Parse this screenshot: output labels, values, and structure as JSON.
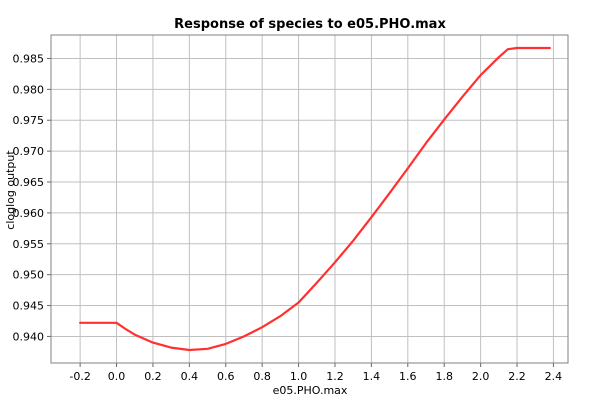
{
  "chart_data": {
    "type": "line",
    "title": "Response of species to e05.PHO.max",
    "xlabel": "e05.PHO.max",
    "ylabel": "cloglog output",
    "xlim": [
      -0.36,
      2.48
    ],
    "ylim": [
      0.9357,
      0.9888
    ],
    "x_ticks": [
      -0.2,
      0.0,
      0.2,
      0.4,
      0.6,
      0.8,
      1.0,
      1.2,
      1.4,
      1.6,
      1.8,
      2.0,
      2.2,
      2.4
    ],
    "y_ticks": [
      0.94,
      0.945,
      0.95,
      0.955,
      0.96,
      0.965,
      0.97,
      0.975,
      0.98,
      0.985
    ],
    "x_tick_labels": [
      "-0.2",
      "0.0",
      "0.2",
      "0.4",
      "0.6",
      "0.8",
      "1.0",
      "1.2",
      "1.4",
      "1.6",
      "1.8",
      "2.0",
      "2.2",
      "2.4"
    ],
    "y_tick_labels": [
      "0.940",
      "0.945",
      "0.950",
      "0.955",
      "0.960",
      "0.965",
      "0.970",
      "0.975",
      "0.980",
      "0.985"
    ],
    "grid": true,
    "series": [
      {
        "color": "#ff3030",
        "x": [
          -0.2,
          0.0,
          0.05,
          0.1,
          0.2,
          0.3,
          0.4,
          0.5,
          0.6,
          0.7,
          0.8,
          0.9,
          1.0,
          1.1,
          1.2,
          1.3,
          1.4,
          1.5,
          1.6,
          1.7,
          1.8,
          1.9,
          2.0,
          2.1,
          2.15,
          2.2,
          2.38
        ],
        "y": [
          0.9422,
          0.9422,
          0.9412,
          0.9403,
          0.939,
          0.9382,
          0.9378,
          0.938,
          0.9388,
          0.94,
          0.9415,
          0.9433,
          0.9455,
          0.9487,
          0.952,
          0.9555,
          0.9593,
          0.9632,
          0.9672,
          0.9713,
          0.9751,
          0.9788,
          0.9823,
          0.9852,
          0.9865,
          0.9867,
          0.9867
        ]
      }
    ]
  }
}
